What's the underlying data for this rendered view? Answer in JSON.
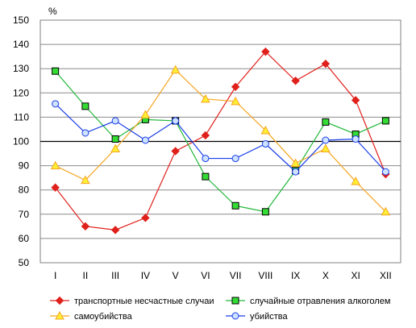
{
  "chart_data": {
    "type": "line",
    "ylabel": "%",
    "ylim": [
      50,
      150
    ],
    "yticks": [
      "50",
      "60",
      "70",
      "80",
      "90",
      "100",
      "110",
      "120",
      "130",
      "140",
      "150"
    ],
    "categories": [
      "I",
      "II",
      "III",
      "IV",
      "V",
      "VI",
      "VII",
      "VIII",
      "IX",
      "X",
      "XI",
      "XII"
    ],
    "reference_line": 100,
    "grid": "horizontal",
    "legend_position": "bottom",
    "series": [
      {
        "name": "транспортные несчастные случаи",
        "color": "#e0201b",
        "marker": "diamond",
        "marker_fill": "#e0201b",
        "values": [
          81,
          65,
          63.5,
          68.5,
          96,
          102.5,
          122.5,
          137,
          125,
          132,
          117,
          86.5
        ]
      },
      {
        "name": "случайные отравления алкоголем",
        "color": "#22b83a",
        "marker": "square",
        "marker_fill": "#33dd33",
        "values": [
          129,
          114.5,
          101,
          109,
          108.5,
          85.5,
          73.5,
          71,
          88,
          108,
          103,
          108.5
        ]
      },
      {
        "name": "самоубийства",
        "color": "#f5a623",
        "marker": "triangle",
        "marker_fill": "#ffee33",
        "values": [
          90,
          84,
          97,
          111,
          129.5,
          117.5,
          116.5,
          104.5,
          91,
          97,
          83.5,
          71
        ]
      },
      {
        "name": "убийства",
        "color": "#1a3ee8",
        "marker": "circle",
        "marker_fill": "#cfe3ff",
        "values": [
          115.5,
          103.5,
          108.5,
          100.5,
          108.5,
          93,
          93,
          99,
          87.5,
          100.5,
          101,
          87.5
        ]
      }
    ]
  }
}
